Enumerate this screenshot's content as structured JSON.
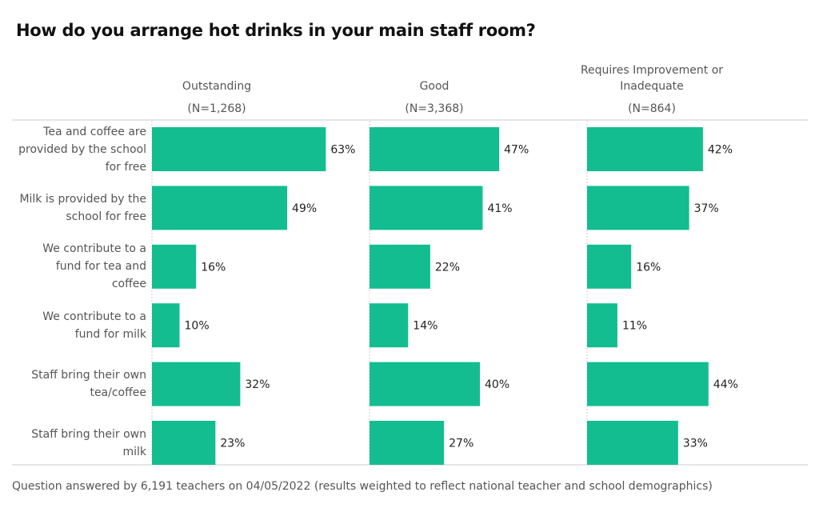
{
  "chart_data": {
    "type": "bar",
    "orientation": "horizontal",
    "title": "How do you arrange hot drinks in your main staff room?",
    "categories": [
      "Tea and coffee are provided by the school for free",
      "Milk is provided by the school for free",
      "We contribute to a fund for tea and coffee",
      "We contribute to a fund for milk",
      "Staff bring their own tea/coffee",
      "Staff bring their own milk"
    ],
    "panels": [
      {
        "name": "Outstanding",
        "n": "(N=1,268)",
        "values": [
          63,
          49,
          16,
          10,
          32,
          23
        ]
      },
      {
        "name": "Good",
        "n": "(N=3,368)",
        "values": [
          47,
          41,
          22,
          14,
          40,
          27
        ]
      },
      {
        "name": "Requires Improvement or Inadequate",
        "n": "(N=864)",
        "values": [
          42,
          37,
          16,
          11,
          44,
          33
        ]
      }
    ],
    "unit": "%",
    "bar_color": "#13bd8f",
    "footnote": "Question answered by 6,191 teachers on 04/05/2022 (results weighted to reflect national teacher and school demographics)"
  }
}
